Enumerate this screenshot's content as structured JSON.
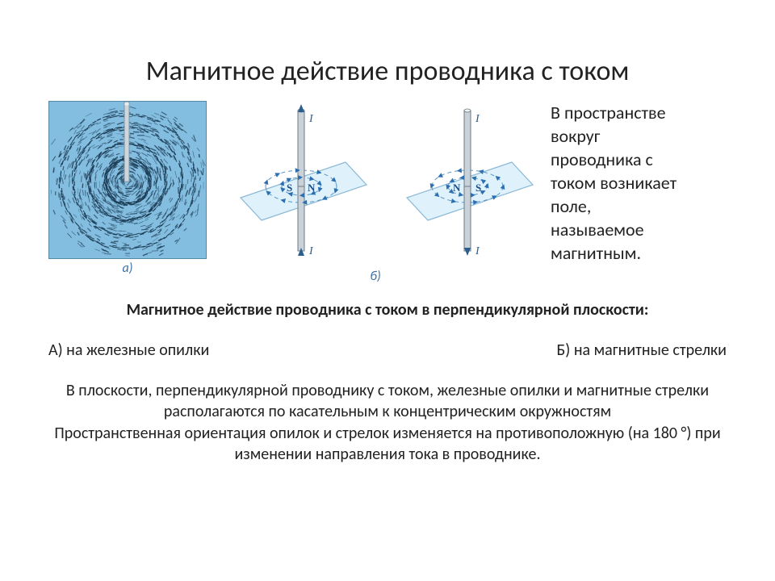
{
  "title": "Магнитное действие проводника с током",
  "side_text": "В пространстве вокруг проводника с током возникает поле, называемое магнитным.",
  "figure_a": {
    "label_text": "а)",
    "bg_color": "#83bde0",
    "filings_color": "#1a3a52",
    "conductor_color": "#cdd6dc",
    "circles": [
      28,
      48,
      68,
      84
    ]
  },
  "figure_b": {
    "label_text": "б)",
    "plane_fill": "#dff2fb",
    "plane_stroke": "#8bb8d6",
    "conductor_fill": "#c9d2d9",
    "conductor_stroke": "#6f7a82",
    "ring_stroke": "#5895c5",
    "arrow_fill": "#2b6fb0",
    "current_label": "I",
    "left": {
      "S": "S",
      "N": "N",
      "dir": "ccw",
      "S_first": true
    },
    "right": {
      "S": "S",
      "N": "N",
      "dir": "cw",
      "S_first": false
    }
  },
  "caption_bold": "Магнитное действие проводника с током в перпендикулярной плоскости:",
  "item_a": "А)  на железные опилки",
  "item_b": "Б)  на магнитные стрелки",
  "para1": "В плоскости, перпендикулярной проводнику с током, железные опилки и магнитные стрелки располагаются по касательным к концентрическим окружностям",
  "para2": "Пространственная ориентация опилок и стрелок изменяется на противоположную (на 180 °) при изменении направления тока в проводнике.",
  "text_color": "#222222"
}
